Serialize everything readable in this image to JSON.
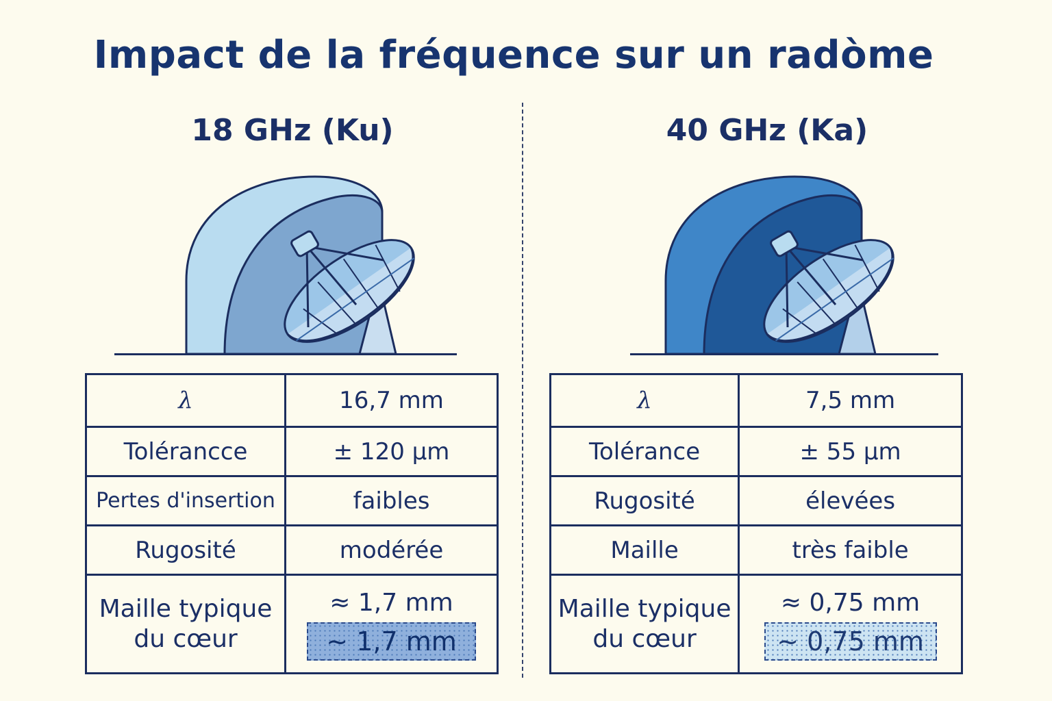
{
  "title": "Impact de la fréquence sur un radòme",
  "colors": {
    "background": "#fdfbee",
    "ink": "#1b2d5e",
    "ku_shell_light": "#b9dcf0",
    "ku_shell_inner": "#7ea6cf",
    "ka_shell_light": "#3f86c8",
    "ka_shell_inner": "#1f5898"
  },
  "bands": [
    {
      "heading": "18 GHz (Ku)",
      "icon": "radome-dish-icon",
      "rows": [
        {
          "label": "λ",
          "value": "16,7 mm"
        },
        {
          "label": "Tolérancce",
          "value": "± 120 µm"
        },
        {
          "label": "Pertes d'insertion",
          "value": "faibles"
        },
        {
          "label": "Rugosité",
          "value": "modérée"
        }
      ],
      "mesh": {
        "label_line1": "Maille typique",
        "label_line2": "du cœur",
        "value": "≈ 1,7 mm",
        "highlight": "~ 1,7 mm"
      }
    },
    {
      "heading": "40 GHz (Ka)",
      "icon": "radome-dish-icon",
      "rows": [
        {
          "label": "λ",
          "value": "7,5 mm"
        },
        {
          "label": "Tolérance",
          "value": "± 55 µm"
        },
        {
          "label": "Rugosité",
          "value": "élevées"
        },
        {
          "label": "Maille",
          "value": "très faible"
        }
      ],
      "mesh": {
        "label_line1": "Maille typique",
        "label_line2": "du cœur",
        "value": "≈ 0,75 mm",
        "highlight": "~ 0,75 mm"
      }
    }
  ]
}
